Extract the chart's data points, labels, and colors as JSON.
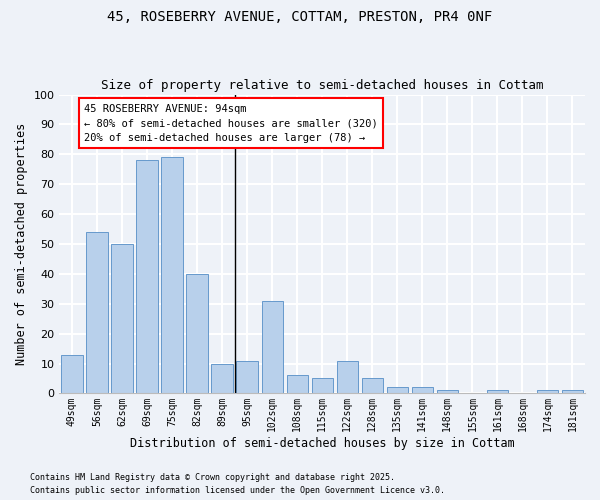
{
  "title1": "45, ROSEBERRY AVENUE, COTTAM, PRESTON, PR4 0NF",
  "title2": "Size of property relative to semi-detached houses in Cottam",
  "xlabel": "Distribution of semi-detached houses by size in Cottam",
  "ylabel": "Number of semi-detached properties",
  "categories": [
    "49sqm",
    "56sqm",
    "62sqm",
    "69sqm",
    "75sqm",
    "82sqm",
    "89sqm",
    "95sqm",
    "102sqm",
    "108sqm",
    "115sqm",
    "122sqm",
    "128sqm",
    "135sqm",
    "141sqm",
    "148sqm",
    "155sqm",
    "161sqm",
    "168sqm",
    "174sqm",
    "181sqm"
  ],
  "values": [
    13,
    54,
    50,
    78,
    79,
    40,
    10,
    11,
    31,
    6,
    5,
    11,
    5,
    2,
    2,
    1,
    0,
    1,
    0,
    1,
    1
  ],
  "bar_color": "#b8d0eb",
  "bar_edgecolor": "#6699cc",
  "annotation_title": "45 ROSEBERRY AVENUE: 94sqm",
  "annotation_line1": "← 80% of semi-detached houses are smaller (320)",
  "annotation_line2": "20% of semi-detached houses are larger (78) →",
  "footer1": "Contains HM Land Registry data © Crown copyright and database right 2025.",
  "footer2": "Contains public sector information licensed under the Open Government Licence v3.0.",
  "ylim": [
    0,
    100
  ],
  "yticks": [
    0,
    10,
    20,
    30,
    40,
    50,
    60,
    70,
    80,
    90,
    100
  ],
  "bg_color": "#eef2f8",
  "grid_color": "#ffffff",
  "title1_fontsize": 10,
  "title2_fontsize": 9,
  "vline_x": 6.5
}
